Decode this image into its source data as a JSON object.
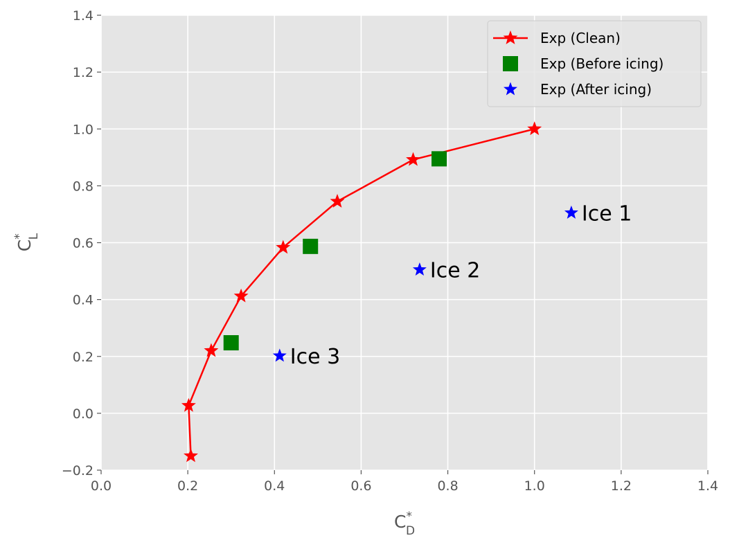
{
  "chart_data": {
    "type": "scatter",
    "xlabel": "C*D",
    "ylabel": "C*L",
    "xlabel_parts": {
      "base": "C",
      "sup": "*",
      "sub": "D"
    },
    "ylabel_parts": {
      "base": "C",
      "sup": "*",
      "sub": "L"
    },
    "xlim": [
      0.0,
      1.4
    ],
    "ylim": [
      -0.2,
      1.4
    ],
    "xticks": [
      "0.0",
      "0.2",
      "0.4",
      "0.6",
      "0.8",
      "1.0",
      "1.2",
      "1.4"
    ],
    "yticks": [
      "−0.2",
      "0.0",
      "0.2",
      "0.4",
      "0.6",
      "0.8",
      "1.0",
      "1.2",
      "1.4"
    ],
    "grid": true,
    "legend_position": "top-right",
    "series": [
      {
        "name": "Exp (Clean)",
        "style": "line-star",
        "color": "#ff0000",
        "x": [
          0.207,
          0.202,
          0.254,
          0.323,
          0.42,
          0.545,
          0.72,
          1.0
        ],
        "y": [
          -0.15,
          0.027,
          0.22,
          0.412,
          0.583,
          0.745,
          0.892,
          1.0
        ]
      },
      {
        "name": "Exp (Before icing)",
        "style": "square",
        "color": "#008000",
        "x": [
          0.3,
          0.483,
          0.78
        ],
        "y": [
          0.248,
          0.587,
          0.895
        ]
      },
      {
        "name": "Exp (After icing)",
        "style": "star",
        "color": "#0000ff",
        "x": [
          0.412,
          0.735,
          1.085
        ],
        "y": [
          0.202,
          0.505,
          0.705
        ]
      }
    ],
    "annotations": [
      {
        "text": "Ice 1",
        "x": 1.085,
        "y": 0.705
      },
      {
        "text": "Ice 2",
        "x": 0.735,
        "y": 0.505
      },
      {
        "text": "Ice 3",
        "x": 0.412,
        "y": 0.202
      }
    ]
  }
}
